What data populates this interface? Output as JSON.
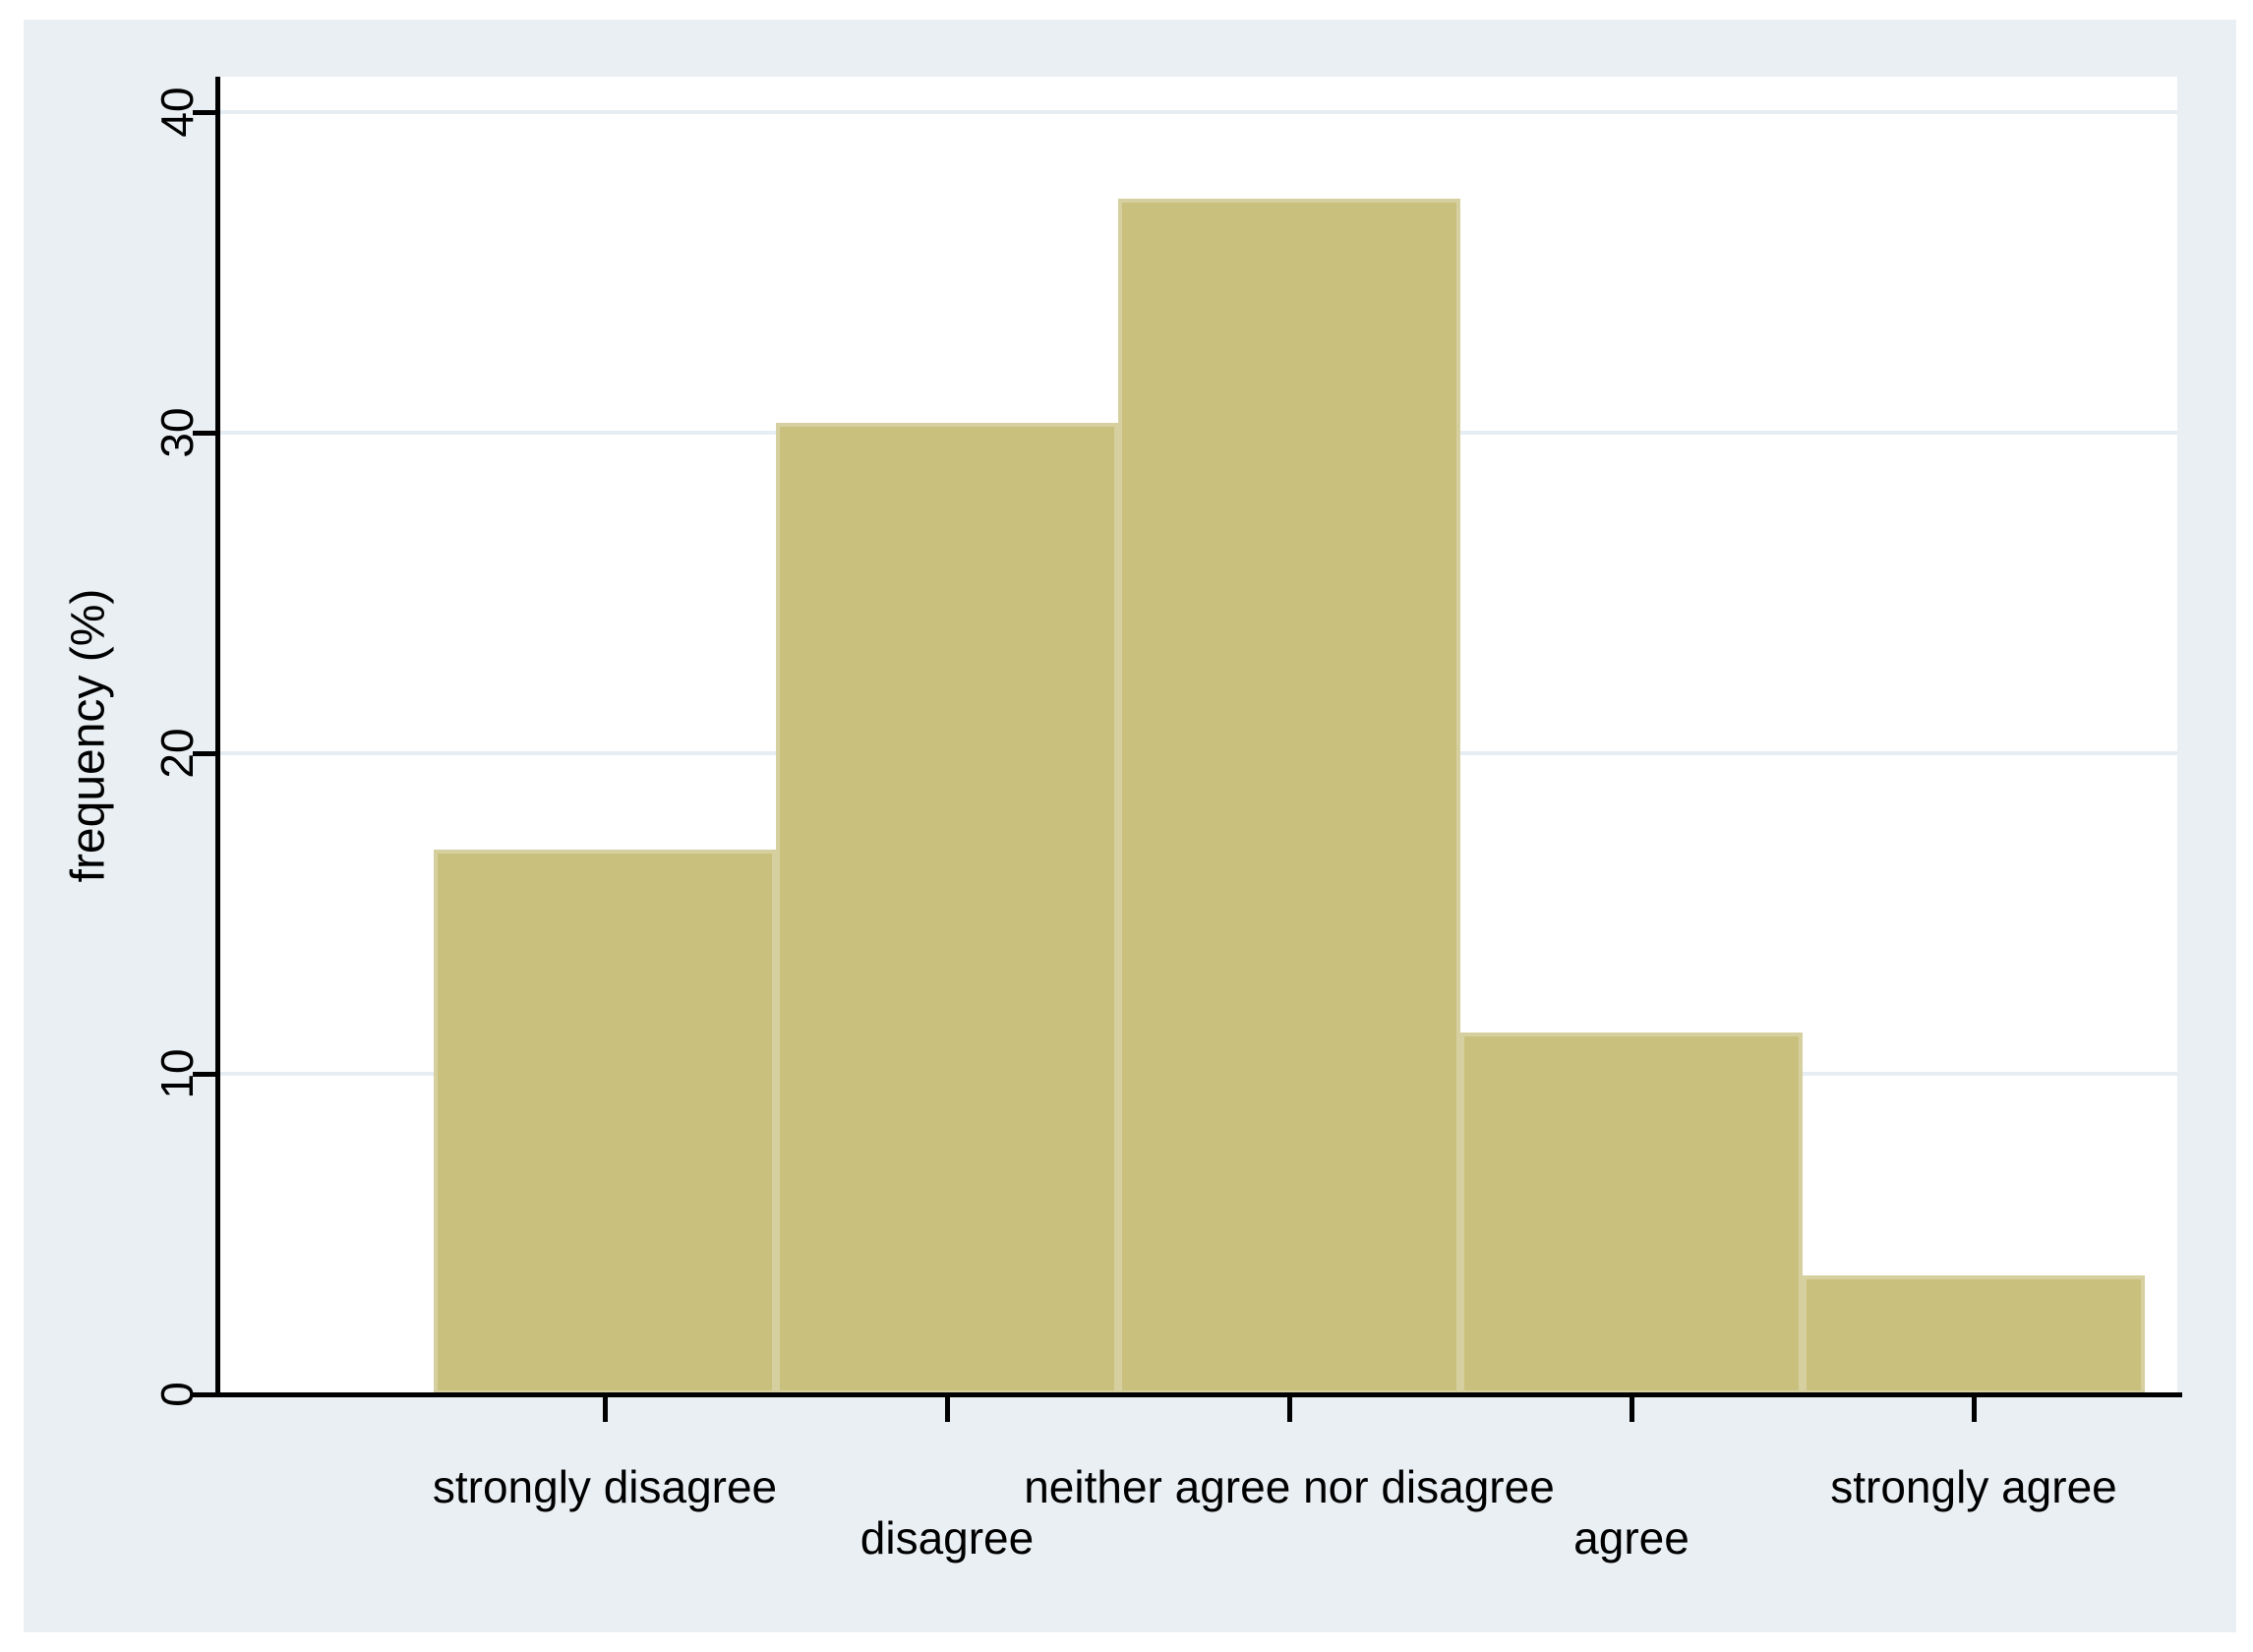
{
  "chart_data": {
    "type": "bar",
    "title": "",
    "xlabel": "",
    "ylabel": "frequency (%)",
    "categories": [
      "strongly disagree",
      "disagree",
      "neither agree nor disagree",
      "agree",
      "strongly agree"
    ],
    "values": [
      17.0,
      30.3,
      37.3,
      11.3,
      3.7
    ],
    "units": "percent",
    "ylim": [
      0,
      41
    ],
    "yticks": [
      0,
      10,
      20,
      30,
      40
    ],
    "ytick_labels": [
      "0",
      "10",
      "20",
      "30",
      "40"
    ],
    "grid": "horizontal gridlines at yticks, none at 0",
    "legend": "none",
    "colors": {
      "bar_fill": "#cac07d",
      "bar_border": "#d6d0a0",
      "figure_background": "#e9eff3",
      "plot_background": "#ffffff",
      "gridline": "#e6eef3",
      "axis_and_text": "#000000",
      "outer_margin": "#ffffff"
    }
  }
}
